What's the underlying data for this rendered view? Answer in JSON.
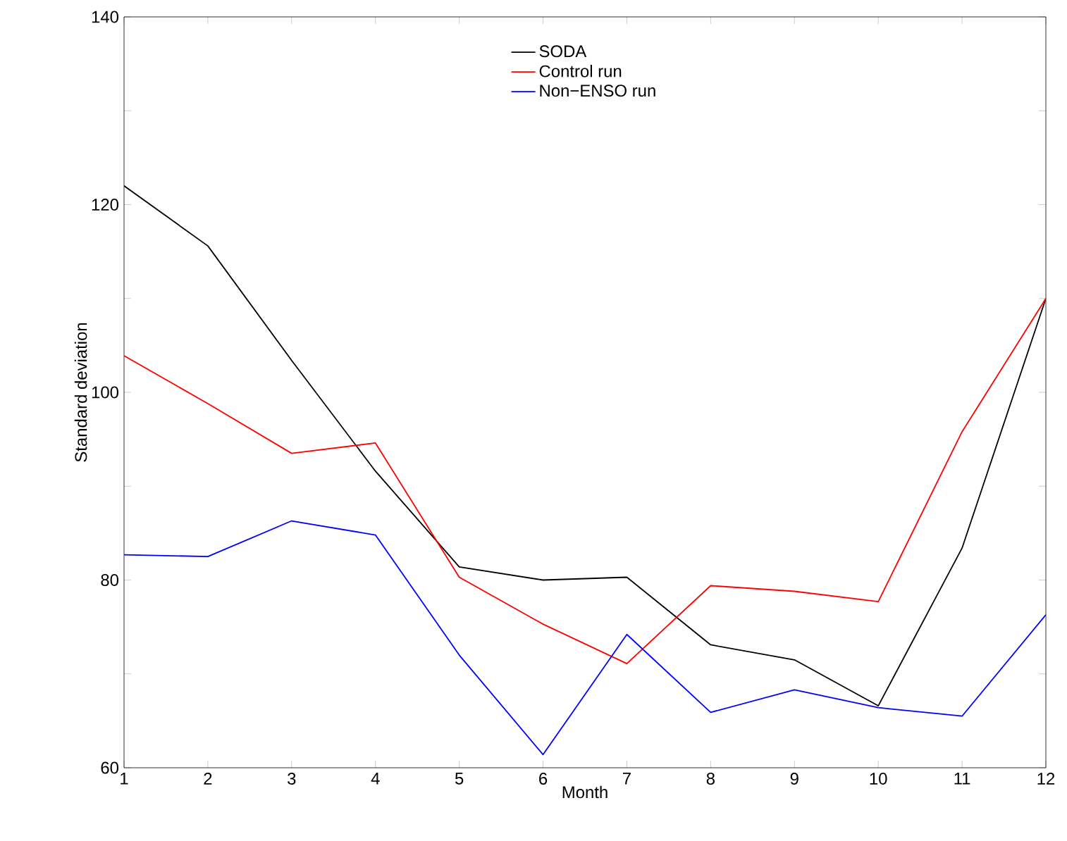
{
  "chart_data": {
    "type": "line",
    "xlabel": "Month",
    "ylabel": "Standard deviation",
    "x": [
      1,
      2,
      3,
      4,
      5,
      6,
      7,
      8,
      9,
      10,
      11,
      12
    ],
    "series": [
      {
        "name": "SODA",
        "color": "#000000",
        "values": [
          122.0,
          115.6,
          103.4,
          91.6,
          81.4,
          80.0,
          80.3,
          73.1,
          71.5,
          66.6,
          83.4,
          110.0
        ]
      },
      {
        "name": "Control run",
        "color": "#ff0000",
        "values": [
          103.9,
          98.8,
          93.5,
          94.6,
          80.3,
          75.3,
          71.1,
          79.4,
          78.8,
          77.7,
          95.8,
          110.0
        ]
      },
      {
        "name": "Non−ENSO run",
        "color": "#0000ff",
        "values": [
          82.7,
          82.5,
          86.3,
          84.8,
          72.0,
          61.4,
          74.2,
          65.9,
          68.3,
          66.4,
          65.5,
          76.3
        ]
      }
    ],
    "xlim": [
      1,
      12
    ],
    "xticks": [
      1,
      2,
      3,
      4,
      5,
      6,
      7,
      8,
      9,
      10,
      11,
      12
    ],
    "ylim": [
      60,
      140
    ],
    "yticks": [
      60,
      {
        "value": 70,
        "label": null
      },
      80,
      {
        "value": 90,
        "label": null
      },
      100,
      {
        "value": 110,
        "label": null
      },
      120,
      {
        "value": 130,
        "label": null
      },
      140
    ],
    "grid": false,
    "legend": "top",
    "marker": "none",
    "line_style": "solid"
  }
}
